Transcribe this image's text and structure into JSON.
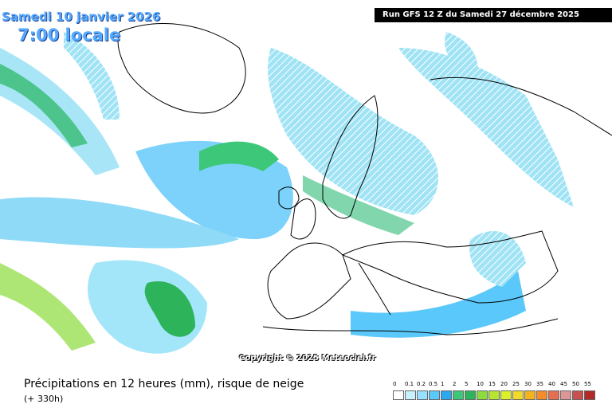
{
  "header": {
    "date": "Samedi 10 janvier 2026",
    "time": "7:00 locale",
    "run": "Run GFS 12 Z du Samedi 27 décembre 2025"
  },
  "copyright": "Copyright © 2025 Meteociel.fr",
  "footer": {
    "title": "Précipitations en 12 heures (mm), risque de neige",
    "lead": "(+ 330h)"
  },
  "legend": {
    "labels": [
      "0",
      "0.1",
      "0.2",
      "0.5",
      "1",
      "2",
      "5",
      "10",
      "15",
      "20",
      "25",
      "30",
      "35",
      "40",
      "45",
      "50",
      "55"
    ],
    "colors": [
      "#ffffff",
      "#c8f0ff",
      "#96e1ff",
      "#5ac8fa",
      "#2aa8f0",
      "#3cc878",
      "#2db45a",
      "#8cdc3c",
      "#b4e632",
      "#dcf028",
      "#f0dc28",
      "#f5b41e",
      "#f58c28",
      "#e66e50",
      "#dc9696",
      "#c85050",
      "#b42828"
    ]
  }
}
